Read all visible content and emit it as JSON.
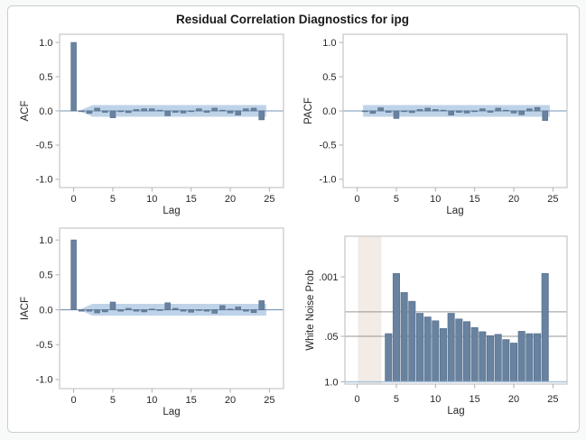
{
  "title": "Residual Correlation Diagnostics for ipg",
  "colors": {
    "bar": "#68829F",
    "bar_border": "#5B7491",
    "band": "#BFD3E8",
    "zero_line": "#7693B3",
    "frame": "#C6C6C6",
    "tick": "#AFAFAF",
    "grid": "#969696",
    "baseline_one": "#A9C2DD",
    "prewhiten_region": "#F3EBE6",
    "text": "#262626",
    "title_text": "#1A1A1A",
    "outer_border": "#C9CDD1",
    "figure_bg": "#FFFFFF"
  },
  "chart_data": [
    {
      "id": "acf",
      "type": "bar",
      "ylabel": "ACF",
      "xlabel": "Lag",
      "ylim": [
        -1,
        1
      ],
      "yticks": [
        {
          "v": 1.0,
          "label": "1.0"
        },
        {
          "v": 0.5,
          "label": "0.5"
        },
        {
          "v": 0.0,
          "label": "0.0"
        },
        {
          "v": -0.5,
          "label": "-0.5"
        },
        {
          "v": -1.0,
          "label": "-1.0"
        }
      ],
      "xticks": [
        0,
        5,
        10,
        15,
        20,
        25
      ],
      "confidence_band": 0.085,
      "band_shape": {
        "start_lag": 0.7,
        "full_lag": 2.4,
        "end_lag": 24.6,
        "tapered": true
      },
      "lags": [
        0,
        1,
        2,
        3,
        4,
        5,
        6,
        7,
        8,
        9,
        10,
        11,
        12,
        13,
        14,
        15,
        16,
        17,
        18,
        19,
        20,
        21,
        22,
        23,
        24
      ],
      "values": [
        1.0,
        -0.01,
        -0.035,
        0.04,
        -0.02,
        -0.1,
        -0.01,
        -0.025,
        0.02,
        0.03,
        0.03,
        0.01,
        -0.07,
        -0.02,
        -0.03,
        -0.01,
        0.03,
        -0.02,
        0.04,
        0.01,
        -0.03,
        -0.06,
        0.03,
        0.04,
        -0.13
      ]
    },
    {
      "id": "pacf",
      "type": "bar",
      "ylabel": "PACF",
      "xlabel": "Lag",
      "ylim": [
        -1,
        1
      ],
      "yticks": [
        {
          "v": 1.0,
          "label": "1.0"
        },
        {
          "v": 0.5,
          "label": "0.5"
        },
        {
          "v": 0.0,
          "label": "0.0"
        },
        {
          "v": -0.5,
          "label": "-0.5"
        },
        {
          "v": -1.0,
          "label": "-1.0"
        }
      ],
      "xticks": [
        0,
        5,
        10,
        15,
        20,
        25
      ],
      "confidence_band": 0.085,
      "band_shape": {
        "start_lag": 0.75,
        "full_lag": 0.75,
        "end_lag": 24.6,
        "tapered": false
      },
      "lags": [
        1,
        2,
        3,
        4,
        5,
        6,
        7,
        8,
        9,
        10,
        11,
        12,
        13,
        14,
        15,
        16,
        17,
        18,
        19,
        20,
        21,
        22,
        23,
        24
      ],
      "values": [
        -0.01,
        -0.035,
        0.045,
        -0.02,
        -0.11,
        -0.01,
        -0.025,
        0.02,
        0.04,
        0.02,
        0.01,
        -0.06,
        -0.02,
        -0.03,
        -0.01,
        0.03,
        -0.02,
        0.04,
        0.01,
        -0.03,
        -0.055,
        0.03,
        0.05,
        -0.14
      ]
    },
    {
      "id": "iacf",
      "type": "bar",
      "ylabel": "IACF",
      "xlabel": "Lag",
      "ylim": [
        -1,
        1
      ],
      "yticks": [
        {
          "v": 1.0,
          "label": "1.0"
        },
        {
          "v": 0.5,
          "label": "0.5"
        },
        {
          "v": 0.0,
          "label": "0.0"
        },
        {
          "v": -0.5,
          "label": "-0.5"
        },
        {
          "v": -1.0,
          "label": "-1.0"
        }
      ],
      "xticks": [
        0,
        5,
        10,
        15,
        20,
        25
      ],
      "confidence_band": 0.085,
      "band_shape": {
        "start_lag": 0.7,
        "full_lag": 2.4,
        "end_lag": 24.6,
        "tapered": true
      },
      "lags": [
        0,
        1,
        2,
        3,
        4,
        5,
        6,
        7,
        8,
        9,
        10,
        11,
        12,
        13,
        14,
        15,
        16,
        17,
        18,
        19,
        20,
        21,
        22,
        23,
        24
      ],
      "values": [
        1.0,
        -0.02,
        -0.02,
        -0.045,
        -0.03,
        0.11,
        -0.02,
        0.02,
        -0.02,
        -0.03,
        0.01,
        -0.01,
        0.1,
        0.02,
        -0.02,
        -0.035,
        -0.01,
        -0.02,
        -0.05,
        0.06,
        0.01,
        0.04,
        -0.02,
        -0.04,
        0.13
      ]
    },
    {
      "id": "wnp",
      "type": "bar",
      "yscale": "log-inverted",
      "ylabel": "White Noise Prob",
      "xlabel": "Lag",
      "yticks": [
        {
          "v": 0.001,
          "label": ".001"
        },
        {
          "v": 0.05,
          "label": ".05"
        },
        {
          "v": 1.0,
          "label": "1.0"
        }
      ],
      "gridlines": [
        0.01,
        0.05
      ],
      "baseline": 1.0,
      "shaded_lag_region": [
        0.1,
        3.1
      ],
      "xticks": [
        0,
        5,
        10,
        15,
        20,
        25
      ],
      "lags": [
        4,
        5,
        6,
        7,
        8,
        9,
        10,
        11,
        12,
        13,
        14,
        15,
        16,
        17,
        18,
        19,
        20,
        21,
        22,
        23,
        24
      ],
      "values": [
        0.042,
        0.0008,
        0.0028,
        0.005,
        0.011,
        0.014,
        0.018,
        0.03,
        0.011,
        0.016,
        0.019,
        0.028,
        0.037,
        0.048,
        0.044,
        0.062,
        0.078,
        0.036,
        0.042,
        0.042,
        0.0008
      ]
    }
  ]
}
